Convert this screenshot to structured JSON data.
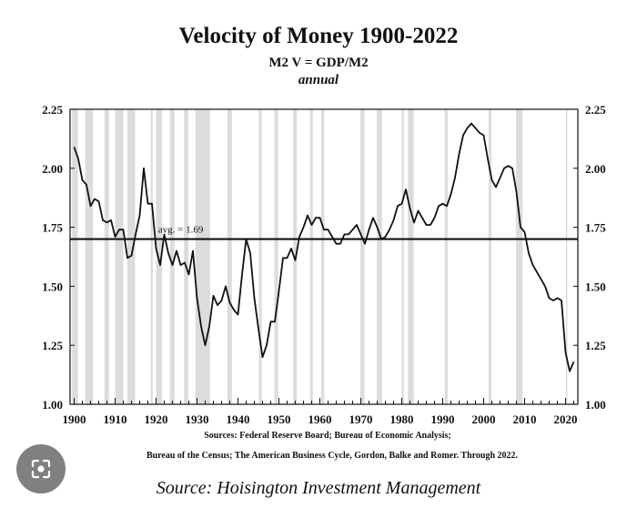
{
  "header": {
    "title": "Velocity of Money 1900-2022",
    "subtitle": "M2 V = GDP/M2",
    "frequency": "annual"
  },
  "sources": {
    "line1": "Sources: Federal Reserve Board; Bureau of Economic Analysis;",
    "line2": "Bureau of the Census; The American Business Cycle, Gordon, Balke and Romer. Through 2022.",
    "footer": "Source: Hoisington Investment Management"
  },
  "overlay": {
    "icon": "lens-search-icon"
  },
  "colors": {
    "line": "#111111",
    "recession_band": "#dcdcdc",
    "background": "#ffffff"
  },
  "chart_data": {
    "type": "line",
    "title": "Velocity of Money 1900-2022",
    "xlim": [
      1899,
      2023
    ],
    "ylim": [
      1.0,
      2.25
    ],
    "xticks": [
      1900,
      1910,
      1920,
      1930,
      1940,
      1950,
      1960,
      1970,
      1980,
      1990,
      2000,
      2010,
      2020
    ],
    "yticks": [
      "1.00",
      "1.25",
      "1.50",
      "1.75",
      "2.00",
      "2.25"
    ],
    "right_axis": true,
    "grid": false,
    "average": {
      "value": 1.7,
      "label": "avg. = 1.69"
    },
    "recessions": [
      [
        1899.5,
        1900.9
      ],
      [
        1902.7,
        1904.6
      ],
      [
        1907.4,
        1908.5
      ],
      [
        1910.0,
        1912.0
      ],
      [
        1913.0,
        1914.9
      ],
      [
        1918.7,
        1919.2
      ],
      [
        1920.0,
        1921.5
      ],
      [
        1923.4,
        1924.5
      ],
      [
        1926.8,
        1927.9
      ],
      [
        1929.6,
        1933.2
      ],
      [
        1937.4,
        1938.5
      ],
      [
        1945.1,
        1945.8
      ],
      [
        1948.9,
        1949.8
      ],
      [
        1953.5,
        1954.4
      ],
      [
        1957.6,
        1958.3
      ],
      [
        1960.3,
        1961.1
      ],
      [
        1969.9,
        1970.9
      ],
      [
        1973.9,
        1975.2
      ],
      [
        1980.0,
        1980.5
      ],
      [
        1981.5,
        1982.9
      ],
      [
        1990.5,
        1991.2
      ],
      [
        2001.2,
        2001.9
      ],
      [
        2007.9,
        2009.5
      ],
      [
        2020.1,
        2020.4
      ]
    ],
    "series": [
      {
        "x": [
          1900,
          1901,
          1902,
          1903,
          1904,
          1905,
          1906,
          1907,
          1908,
          1909,
          1910,
          1911,
          1912,
          1913,
          1914,
          1915,
          1916,
          1917,
          1918,
          1919,
          1920,
          1921,
          1922,
          1923,
          1924,
          1925,
          1926,
          1927,
          1928,
          1929,
          1930,
          1931,
          1932,
          1933,
          1934,
          1935,
          1936,
          1937,
          1938,
          1939,
          1940,
          1941,
          1942,
          1943,
          1944,
          1945,
          1946,
          1947,
          1948,
          1949,
          1950,
          1951,
          1952,
          1953,
          1954,
          1955,
          1956,
          1957,
          1958,
          1959,
          1960,
          1961,
          1962,
          1963,
          1964,
          1965,
          1966,
          1967,
          1968,
          1969,
          1970,
          1971,
          1972,
          1973,
          1974,
          1975,
          1976,
          1977,
          1978,
          1979,
          1980,
          1981,
          1982,
          1983,
          1984,
          1985,
          1986,
          1987,
          1988,
          1989,
          1990,
          1991,
          1992,
          1993,
          1994,
          1995,
          1996,
          1997,
          1998,
          1999,
          2000,
          2001,
          2002,
          2003,
          2004,
          2005,
          2006,
          2007,
          2008,
          2009,
          2010,
          2011,
          2012,
          2013,
          2014,
          2015,
          2016,
          2017,
          2018,
          2019,
          2020,
          2021,
          2022
        ],
        "values": [
          2.09,
          2.04,
          1.95,
          1.93,
          1.84,
          1.87,
          1.86,
          1.78,
          1.77,
          1.78,
          1.71,
          1.74,
          1.74,
          1.62,
          1.63,
          1.72,
          1.8,
          2.0,
          1.85,
          1.85,
          1.66,
          1.59,
          1.72,
          1.64,
          1.59,
          1.65,
          1.59,
          1.6,
          1.55,
          1.65,
          1.45,
          1.33,
          1.25,
          1.33,
          1.46,
          1.42,
          1.44,
          1.5,
          1.43,
          1.4,
          1.38,
          1.55,
          1.7,
          1.64,
          1.45,
          1.32,
          1.2,
          1.25,
          1.35,
          1.35,
          1.48,
          1.62,
          1.62,
          1.66,
          1.61,
          1.71,
          1.75,
          1.8,
          1.76,
          1.79,
          1.79,
          1.74,
          1.74,
          1.71,
          1.68,
          1.68,
          1.72,
          1.72,
          1.74,
          1.76,
          1.72,
          1.68,
          1.74,
          1.79,
          1.75,
          1.7,
          1.71,
          1.74,
          1.78,
          1.84,
          1.85,
          1.91,
          1.83,
          1.77,
          1.82,
          1.79,
          1.76,
          1.76,
          1.79,
          1.84,
          1.85,
          1.84,
          1.89,
          1.96,
          2.06,
          2.14,
          2.17,
          2.19,
          2.17,
          2.15,
          2.14,
          2.04,
          1.95,
          1.92,
          1.96,
          2.0,
          2.01,
          2.0,
          1.9,
          1.75,
          1.73,
          1.64,
          1.59,
          1.56,
          1.53,
          1.5,
          1.45,
          1.44,
          1.45,
          1.44,
          1.22,
          1.14,
          1.18
        ]
      }
    ]
  }
}
